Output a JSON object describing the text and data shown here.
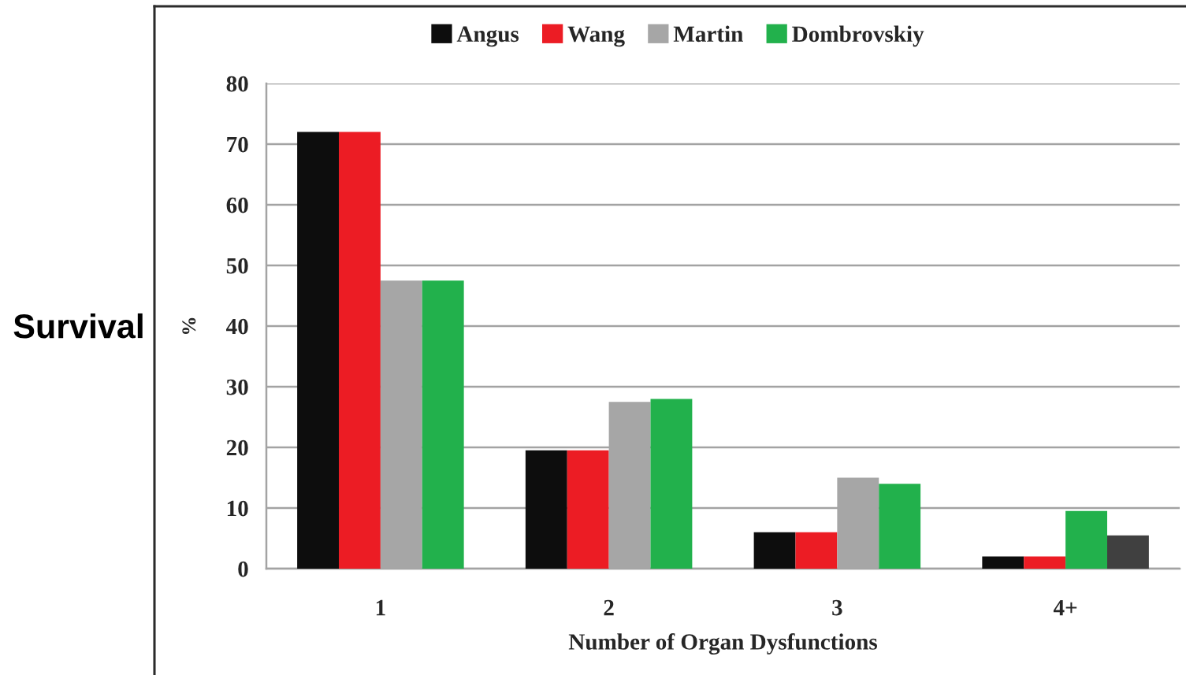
{
  "chart_data": {
    "type": "bar",
    "categories": [
      "1",
      "2",
      "3",
      "4+"
    ],
    "xlabel": "Number of Organ Dysfunctions",
    "ylabel": "%",
    "annotations": [
      "Survival"
    ],
    "series": [
      {
        "name": "Angus",
        "color": "#0d0d0d",
        "values": [
          72,
          19.5,
          6,
          2
        ]
      },
      {
        "name": "Wang",
        "color": "#ec1c24",
        "values": [
          72,
          19.5,
          6,
          2
        ]
      },
      {
        "name": "Martin",
        "color": "#a6a6a6",
        "colors": [
          "#a6a6a6",
          "#a6a6a6",
          "#a6a6a6",
          "#22b14c"
        ],
        "values": [
          47.5,
          27.5,
          15,
          9.5
        ]
      },
      {
        "name": "Dombrovskiy",
        "color": "#22b14c",
        "colors": [
          "#22b14c",
          "#22b14c",
          "#22b14c",
          "#404040"
        ],
        "values": [
          47.5,
          28,
          14,
          5.5
        ]
      }
    ],
    "ylim": [
      0,
      80
    ],
    "yticks": [
      0,
      10,
      20,
      30,
      40,
      50,
      60,
      70,
      80
    ],
    "grid": "y",
    "legend": "top"
  }
}
